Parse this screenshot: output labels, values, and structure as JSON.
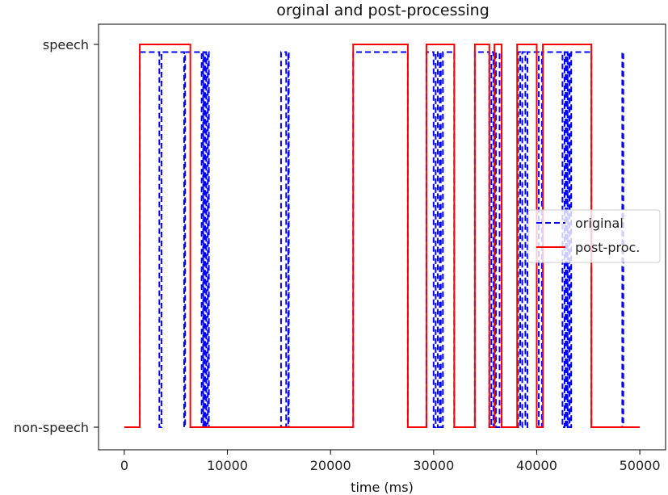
{
  "chart_data": {
    "type": "line",
    "title": "orginal and post-processing",
    "xlabel": "time (ms)",
    "ylabel": "",
    "xlim": [
      -2500,
      52500
    ],
    "ylim": [
      0,
      1
    ],
    "x_ticks": [
      0,
      10000,
      20000,
      30000,
      40000,
      50000
    ],
    "x_tick_labels": [
      "0",
      "10000",
      "20000",
      "30000",
      "40000",
      "50000"
    ],
    "y_ticks": [
      0,
      1
    ],
    "y_tick_labels": [
      "non-speech",
      "speech"
    ],
    "grid": false,
    "legend_position": "center-right",
    "series": [
      {
        "name": "original",
        "color": "#0000ff",
        "style": "dashed",
        "level": 0.98,
        "segments": [
          [
            1500,
            3400
          ],
          [
            3600,
            5800
          ],
          [
            5900,
            7500
          ],
          [
            7650,
            7700
          ],
          [
            7850,
            7950
          ],
          [
            8100,
            8200
          ],
          [
            15200,
            15700
          ],
          [
            15900,
            15950
          ],
          [
            22200,
            27500
          ],
          [
            29300,
            30000
          ],
          [
            30200,
            30400
          ],
          [
            30600,
            30700
          ],
          [
            30900,
            32000
          ],
          [
            34000,
            35400
          ],
          [
            35600,
            35800
          ],
          [
            35950,
            36050
          ],
          [
            36400,
            36600
          ],
          [
            38200,
            38400
          ],
          [
            38600,
            38900
          ],
          [
            39100,
            40200
          ],
          [
            40500,
            42500
          ],
          [
            42700,
            42800
          ],
          [
            42950,
            43000
          ],
          [
            43150,
            43200
          ],
          [
            43350,
            45300
          ],
          [
            48300,
            48400
          ]
        ]
      },
      {
        "name": "post-proc.",
        "color": "#ff0000",
        "style": "solid",
        "level": 1,
        "segments": [
          [
            1500,
            6400
          ],
          [
            22200,
            27500
          ],
          [
            29300,
            32000
          ],
          [
            34000,
            35400
          ],
          [
            35900,
            36600
          ],
          [
            38100,
            40000
          ],
          [
            40600,
            45300
          ]
        ]
      }
    ]
  }
}
